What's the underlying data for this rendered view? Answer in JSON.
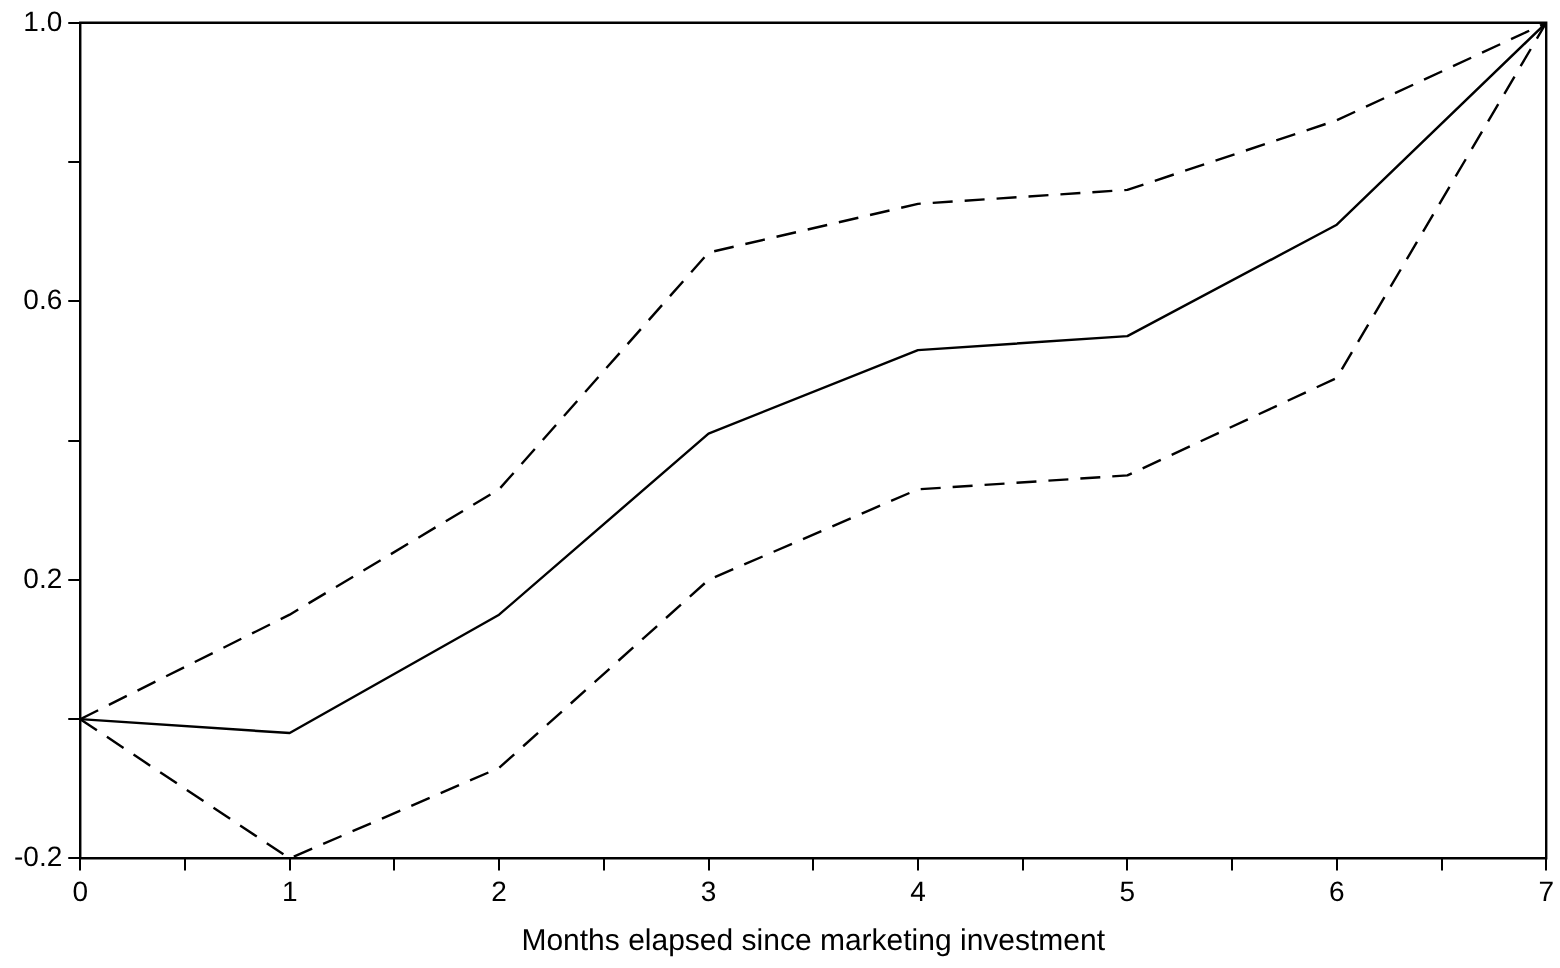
{
  "chart_data": {
    "type": "line",
    "xlabel": "Months elapsed since marketing investment",
    "x": [
      0,
      1,
      2,
      3,
      4,
      5,
      6,
      7
    ],
    "series": [
      {
        "color": "#000000",
        "line_style": "solid",
        "values": [
          0,
          -0.02,
          0.15,
          0.41,
          0.53,
          0.55,
          0.71,
          1.0
        ]
      },
      {
        "color": "#000000",
        "line_style": "dashed",
        "values": [
          0,
          0.15,
          0.33,
          0.67,
          0.74,
          0.76,
          0.86,
          1.0
        ]
      },
      {
        "color": "#000000",
        "line_style": "dashed",
        "values": [
          0,
          -0.2,
          -0.07,
          0.2,
          0.33,
          0.35,
          0.49,
          1.0
        ]
      }
    ],
    "xlim": [
      0,
      7
    ],
    "ylim": [
      -0.2,
      1.0
    ],
    "xticks": [
      0,
      {
        "value": 0.5,
        "label": null
      },
      1,
      {
        "value": 1.5,
        "label": null
      },
      2,
      {
        "value": 2.5,
        "label": null
      },
      3,
      {
        "value": 3.5,
        "label": null
      },
      4,
      {
        "value": 4.5,
        "label": null
      },
      5,
      {
        "value": 5.5,
        "label": null
      },
      6,
      {
        "value": 6.5,
        "label": null
      },
      7
    ],
    "yticks": [
      {
        "value": -0.2,
        "label": "-0.2"
      },
      {
        "value": 0,
        "label": null
      },
      0.2,
      {
        "value": 0.4,
        "label": null
      },
      0.6,
      {
        "value": 0.8,
        "label": null
      },
      {
        "value": 1.0,
        "label": "1.0"
      }
    ],
    "grid": false,
    "legend": false,
    "marker": "none"
  }
}
